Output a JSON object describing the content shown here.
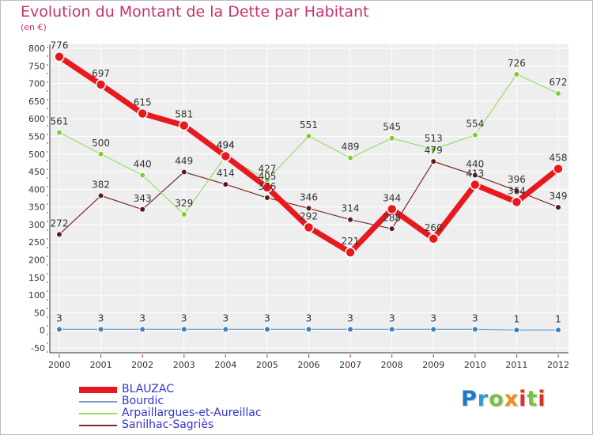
{
  "title": "Evolution du Montant de la Dette par Habitant",
  "subtitle": "(en €)",
  "logo": {
    "letters": [
      {
        "char": "P",
        "color": "#1f77c8"
      },
      {
        "char": "r",
        "color": "#2a9bd6"
      },
      {
        "char": "o",
        "color": "#7ac142"
      },
      {
        "char": "x",
        "color": "#f28c1e"
      },
      {
        "char": "i",
        "color": "#d9342b"
      },
      {
        "char": "t",
        "color": "#7ac142"
      },
      {
        "char": "i",
        "color": "#d9342b"
      }
    ]
  },
  "chart_data": {
    "type": "line",
    "title": "Evolution du Montant de la Dette par Habitant",
    "ylabel": "(en €)",
    "x": [
      "2000",
      "2001",
      "2002",
      "2003",
      "2004",
      "2005",
      "2006",
      "2007",
      "2008",
      "2009",
      "2010",
      "2011",
      "2012"
    ],
    "ylim": [
      -50,
      800
    ],
    "yticks": [
      -50,
      0,
      50,
      100,
      150,
      200,
      250,
      300,
      350,
      400,
      450,
      500,
      550,
      600,
      650,
      700,
      750,
      800
    ],
    "grid": true,
    "legend_position": "bottom-left",
    "series": [
      {
        "name": "BLAUZAC",
        "color": "#e8191e",
        "values": [
          776,
          697,
          615,
          581,
          494,
          405,
          292,
          221,
          344,
          260,
          413,
          364,
          458
        ],
        "labels": [
          "776",
          "697",
          "615",
          "581",
          "494",
          "405",
          "292",
          "221",
          "344",
          "260",
          "413",
          "364",
          "458"
        ]
      },
      {
        "name": "Bourdic",
        "color": "#6a9fd0",
        "values": [
          3,
          3,
          3,
          3,
          3,
          3,
          3,
          3,
          3,
          3,
          3,
          1,
          1
        ],
        "labels": [
          "3",
          "3",
          "3",
          "3",
          "3",
          "3",
          "3",
          "3",
          "3",
          "3",
          "3",
          "1",
          "1"
        ]
      },
      {
        "name": "Arpaillargues-et-Aureillac",
        "color": "#99dd66",
        "values": [
          561,
          500,
          440,
          329,
          494,
          427,
          551,
          489,
          545,
          513,
          554,
          726,
          672
        ],
        "labels": [
          "561",
          "500",
          "440",
          "329",
          "494",
          "427",
          "551",
          "489",
          "545",
          "513",
          "554",
          "726",
          "672"
        ]
      },
      {
        "name": "Sanilhac-Sagriès",
        "color": "#7a2a2a",
        "values": [
          272,
          382,
          343,
          449,
          414,
          376,
          346,
          314,
          288,
          479,
          440,
          396,
          349
        ],
        "labels": [
          "272",
          "382",
          "343",
          "449",
          "414",
          "376",
          "346",
          "314",
          "288",
          "479",
          "440",
          "396",
          "349"
        ]
      }
    ]
  }
}
